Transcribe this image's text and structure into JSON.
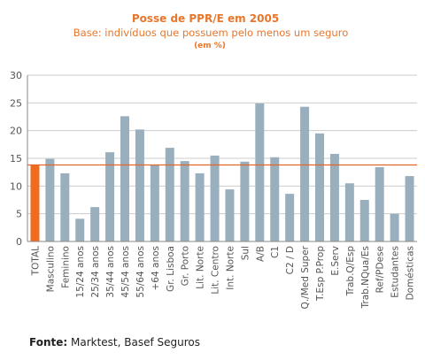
{
  "chart_data": {
    "type": "bar",
    "title": "Posse de PPR/E em 2005",
    "subtitle": "Base: indivíduos que possuem pelo menos um seguro",
    "unit": "(em %)",
    "categories": [
      "TOTAL",
      "Masculino",
      "Feminino",
      "15/24 anos",
      "25/34 anos",
      "35/44 anos",
      "45/54 anos",
      "55/64 anos",
      "+64 anos",
      "Gr. Lisboa",
      "Gr. Porto",
      "Lit. Norte",
      "Lit. Centro",
      "Int. Norte",
      "Sul",
      "A/B",
      "C1",
      "C2 / D",
      "Q./Med Super",
      "T.Esp P.Prop",
      "E.Serv",
      "Trab.Q/Esp",
      "Trab.NQua/Es",
      "Ref/PDese",
      "Estudantes",
      "Domésticas"
    ],
    "values": [
      13.8,
      14.9,
      12.3,
      4.1,
      6.2,
      16.1,
      22.6,
      20.2,
      13.8,
      16.9,
      14.5,
      12.3,
      15.5,
      9.4,
      14.4,
      24.9,
      15.2,
      8.6,
      24.3,
      19.5,
      15.8,
      10.5,
      7.5,
      13.4,
      5.0,
      11.8
    ],
    "highlight_category": "TOTAL",
    "reference_value": 13.8,
    "ylim": [
      0,
      30
    ],
    "yticks": [
      0,
      5,
      10,
      15,
      20,
      25,
      30
    ],
    "grid": true,
    "xlabel": "",
    "ylabel": ""
  },
  "colors": {
    "bar": "#9aafbe",
    "highlight_bar": "#f26b1d",
    "reference_line": "#e0662a",
    "grid": "#cccccc",
    "title": "#e8762b"
  },
  "source": {
    "label": "Fonte:",
    "text": " Marktest, Basef Seguros"
  }
}
